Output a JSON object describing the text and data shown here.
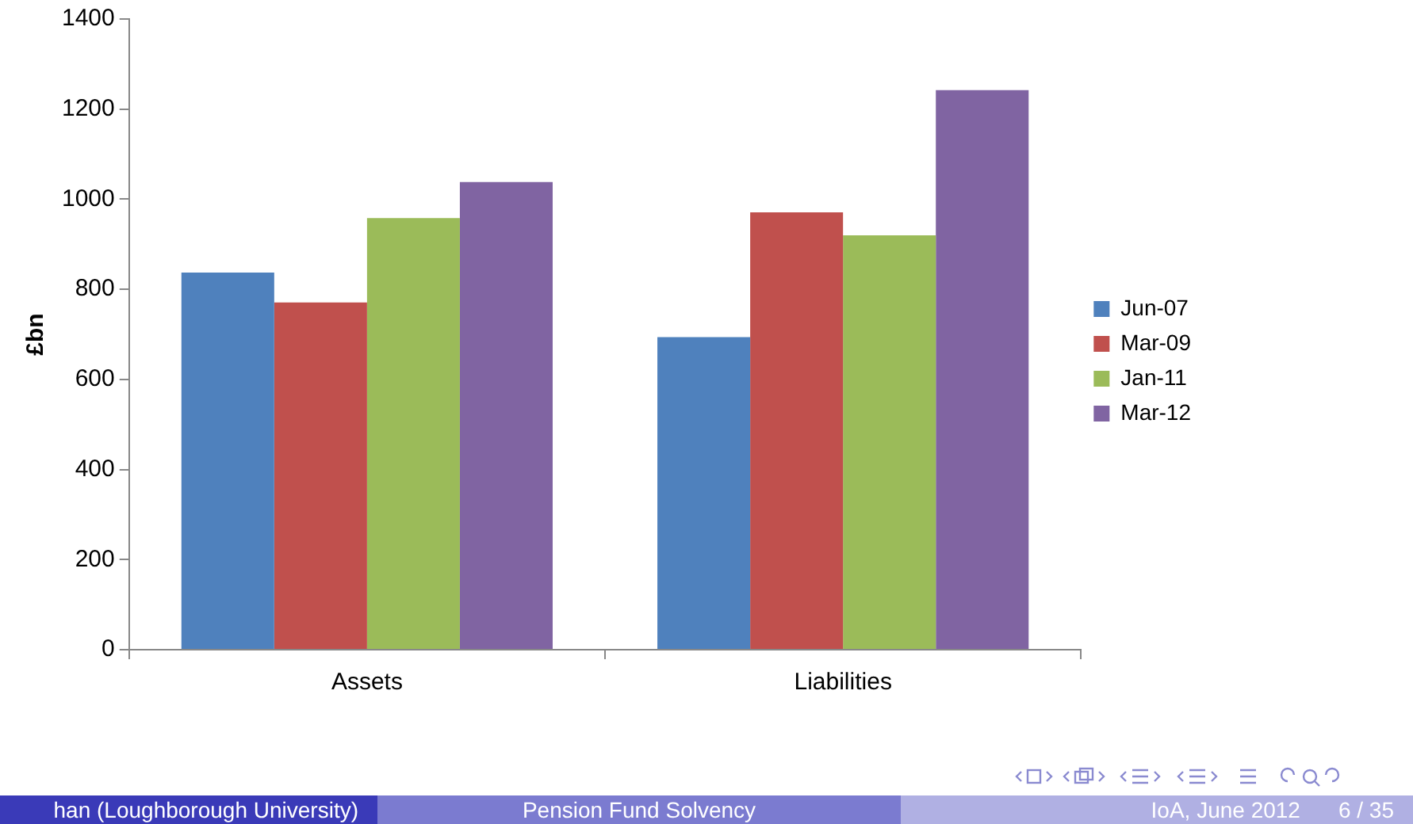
{
  "chart_data": {
    "type": "bar",
    "ylabel": "£bn",
    "categories": [
      "Assets",
      "Liabilities"
    ],
    "series": [
      {
        "name": "Jun-07",
        "color": "#4f81bd",
        "values": [
          837,
          694
        ]
      },
      {
        "name": "Mar-09",
        "color": "#c0504d",
        "values": [
          771,
          971
        ]
      },
      {
        "name": "Jan-11",
        "color": "#9bbb59",
        "values": [
          958,
          920
        ]
      },
      {
        "name": "Mar-12",
        "color": "#8064a2",
        "values": [
          1038,
          1242
        ]
      }
    ],
    "ylim": [
      0,
      1400
    ],
    "yticks": [
      0,
      200,
      400,
      600,
      800,
      1000,
      1200,
      1400
    ],
    "grid": false,
    "legend": "right",
    "annotations": [
      "han (Loughborough University)",
      "Pension Fund Solvency",
      "IoA, June 2012",
      "6 / 35"
    ]
  }
}
